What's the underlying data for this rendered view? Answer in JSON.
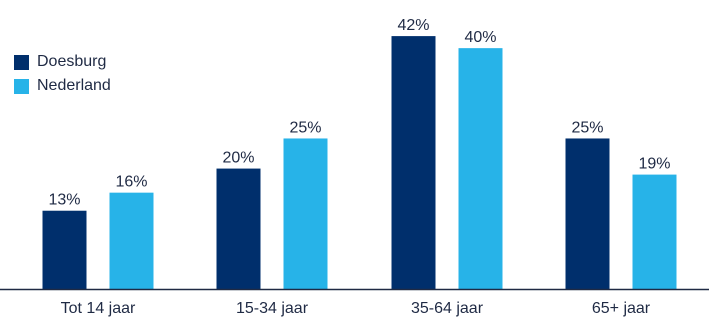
{
  "chart_data": {
    "type": "bar",
    "categories": [
      "Tot 14 jaar",
      "15-34 jaar",
      "35-64 jaar",
      "65+ jaar"
    ],
    "series": [
      {
        "name": "Doesburg",
        "values": [
          13,
          20,
          42,
          25
        ],
        "color": "#002f6c"
      },
      {
        "name": "Nederland",
        "values": [
          16,
          25,
          40,
          19
        ],
        "color": "#27b3e8"
      }
    ],
    "value_suffix": "%",
    "ylim": [
      0,
      47
    ],
    "grid": false,
    "legend_position": "top-left"
  }
}
